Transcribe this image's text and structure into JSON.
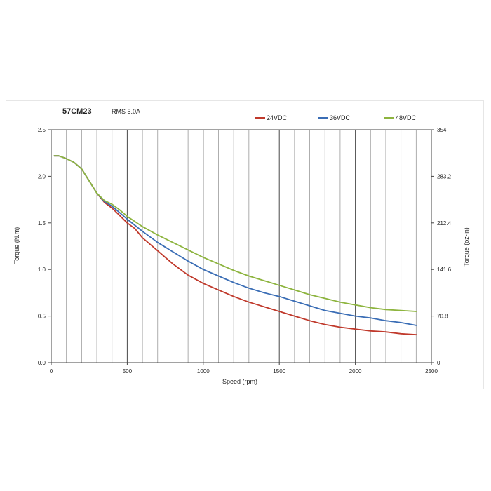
{
  "header": {
    "model": "57CM23",
    "rms": "RMS 5.0A"
  },
  "chart_data": {
    "type": "line",
    "title": "57CM23",
    "subtitle": "RMS 5.0A",
    "xlabel": "Speed (rpm)",
    "ylabel": "Torque (N.m)",
    "y2label": "Torque (oz-in)",
    "xlim": [
      0,
      2500
    ],
    "ylim": [
      0,
      2.5
    ],
    "y2lim": [
      0,
      354
    ],
    "x_ticks": [
      0,
      500,
      1000,
      1500,
      2000,
      2500
    ],
    "y_ticks": [
      0.0,
      0.5,
      1.0,
      1.5,
      2.0,
      2.5
    ],
    "y_tick_labels": [
      "0.0",
      "0.5",
      "1.0",
      "1.5",
      "2.0",
      "2.5"
    ],
    "y2_ticks": [
      0,
      70.8,
      141.6,
      212.4,
      283.2,
      354
    ],
    "y2_tick_labels": [
      "0",
      "70.8",
      "141.6",
      "212.4",
      "283.2",
      "354"
    ],
    "grid": "vertical",
    "legend_position": "top-right",
    "series": [
      {
        "name": "24VDC",
        "color": "#c0392b",
        "x": [
          20,
          50,
          100,
          150,
          200,
          250,
          300,
          350,
          400,
          450,
          500,
          550,
          600,
          700,
          800,
          900,
          1000,
          1100,
          1200,
          1300,
          1400,
          1500,
          1600,
          1700,
          1800,
          1900,
          2000,
          2100,
          2200,
          2300,
          2400
        ],
        "values": [
          2.22,
          2.22,
          2.19,
          2.15,
          2.08,
          1.95,
          1.82,
          1.72,
          1.66,
          1.58,
          1.5,
          1.44,
          1.34,
          1.2,
          1.06,
          0.94,
          0.85,
          0.78,
          0.71,
          0.65,
          0.6,
          0.55,
          0.5,
          0.45,
          0.41,
          0.38,
          0.36,
          0.34,
          0.33,
          0.31,
          0.3
        ]
      },
      {
        "name": "36VDC",
        "color": "#3a6db5",
        "x": [
          20,
          50,
          100,
          150,
          200,
          250,
          300,
          350,
          400,
          450,
          500,
          600,
          700,
          800,
          900,
          1000,
          1100,
          1200,
          1300,
          1400,
          1500,
          1600,
          1700,
          1800,
          1900,
          2000,
          2100,
          2200,
          2300,
          2400
        ],
        "values": [
          2.22,
          2.22,
          2.19,
          2.15,
          2.08,
          1.95,
          1.82,
          1.73,
          1.68,
          1.61,
          1.54,
          1.41,
          1.29,
          1.19,
          1.09,
          1.0,
          0.93,
          0.86,
          0.8,
          0.75,
          0.71,
          0.66,
          0.61,
          0.56,
          0.53,
          0.5,
          0.48,
          0.45,
          0.43,
          0.4
        ]
      },
      {
        "name": "48VDC",
        "color": "#8db43e",
        "x": [
          20,
          50,
          100,
          150,
          200,
          250,
          300,
          350,
          400,
          450,
          500,
          600,
          700,
          800,
          900,
          1000,
          1100,
          1200,
          1300,
          1400,
          1500,
          1600,
          1700,
          1800,
          1900,
          2000,
          2100,
          2200,
          2300,
          2400
        ],
        "values": [
          2.22,
          2.22,
          2.19,
          2.15,
          2.08,
          1.95,
          1.82,
          1.74,
          1.7,
          1.64,
          1.57,
          1.46,
          1.37,
          1.29,
          1.21,
          1.13,
          1.06,
          0.99,
          0.93,
          0.88,
          0.83,
          0.78,
          0.73,
          0.69,
          0.65,
          0.62,
          0.59,
          0.57,
          0.56,
          0.55
        ]
      }
    ]
  }
}
